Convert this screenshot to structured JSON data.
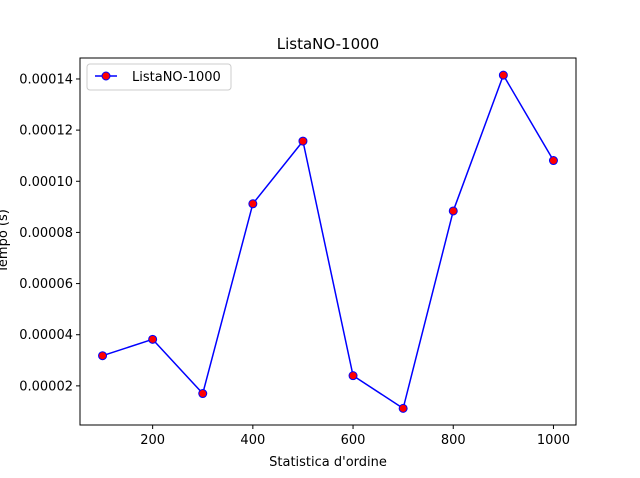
{
  "chart_data": {
    "type": "line",
    "title": "ListaNO-1000",
    "xlabel": "Statistica d'ordine",
    "ylabel": "Tempo (s)",
    "x": [
      100,
      200,
      300,
      400,
      500,
      600,
      700,
      800,
      900,
      1000
    ],
    "series": [
      {
        "name": "ListaNO-1000",
        "values": [
          3.18e-05,
          3.82e-05,
          1.7e-05,
          9.12e-05,
          0.0001157,
          2.4e-05,
          1.12e-05,
          8.84e-05,
          0.0001415,
          0.0001081
        ],
        "line_color": "#0000ff",
        "marker_color": "#ff0000",
        "marker_edge_color": "#0000ff"
      }
    ],
    "xlim": [
      55,
      1045
    ],
    "ylim": [
      4.7e-06,
      0.0001482
    ],
    "xticks": [
      200,
      400,
      600,
      800,
      1000
    ],
    "xtick_labels": [
      "200",
      "400",
      "600",
      "800",
      "1000"
    ],
    "yticks": [
      2e-05,
      4e-05,
      6e-05,
      8e-05,
      0.0001,
      0.00012,
      0.00014
    ],
    "ytick_labels": [
      "0.00002",
      "0.00004",
      "0.00006",
      "0.00008",
      "0.00010",
      "0.00012",
      "0.00014"
    ],
    "legend_position": "top-left",
    "grid": false
  }
}
